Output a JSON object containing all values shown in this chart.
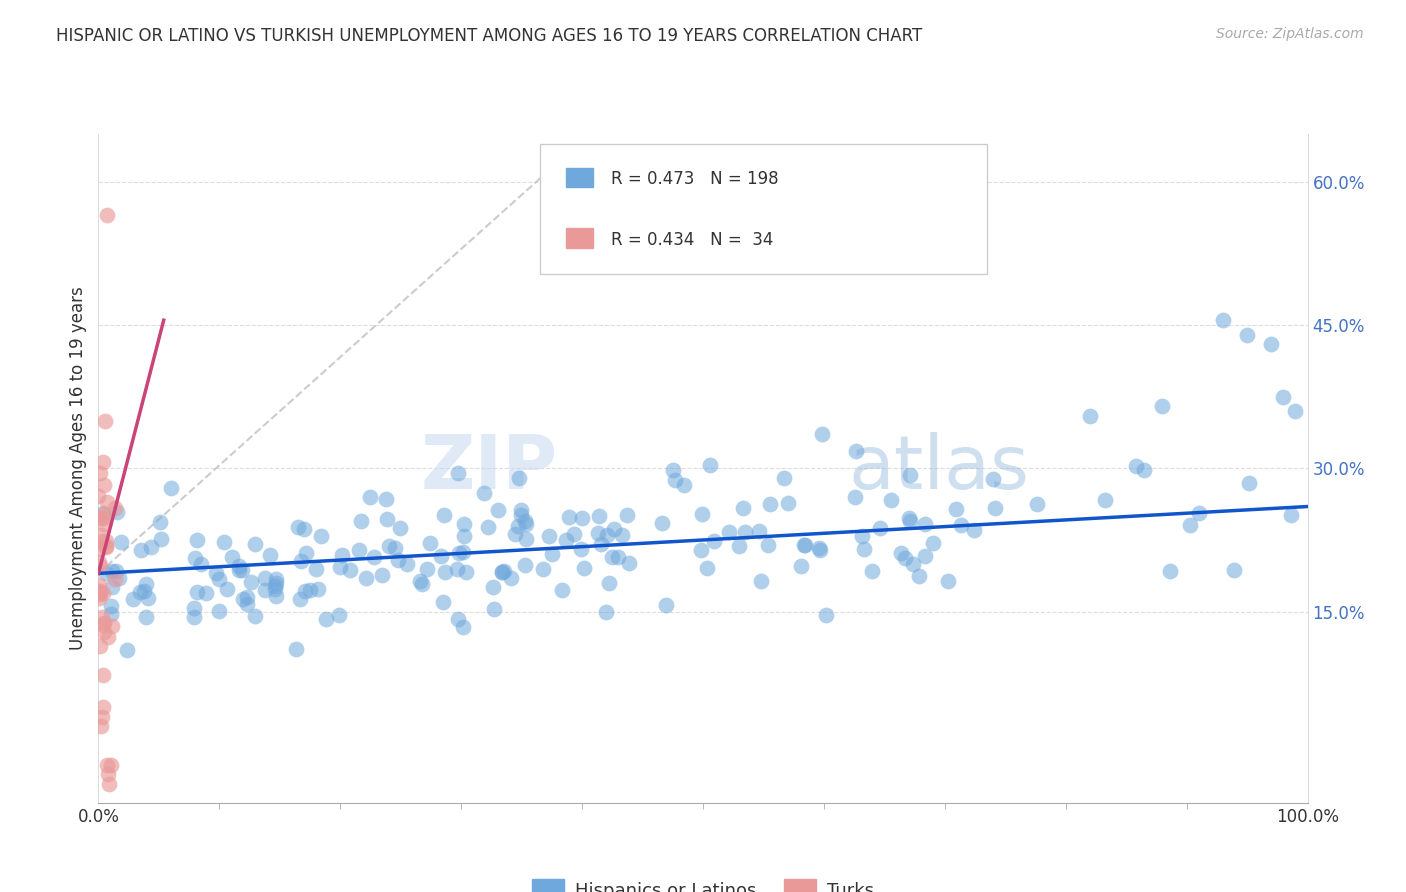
{
  "title": "HISPANIC OR LATINO VS TURKISH UNEMPLOYMENT AMONG AGES 16 TO 19 YEARS CORRELATION CHART",
  "source": "Source: ZipAtlas.com",
  "ylabel_label": "Unemployment Among Ages 16 to 19 years",
  "watermark_zip": "ZIP",
  "watermark_atlas": "atlas",
  "legend_label_blue": "Hispanics or Latinos",
  "legend_label_pink": "Turks",
  "blue_color": "#6fa8dc",
  "pink_color": "#ea9999",
  "blue_line_color": "#1155cc",
  "pink_line_color": "#cc4477",
  "ref_line_color": "#cccccc",
  "blue_R": 0.473,
  "blue_N": 198,
  "pink_R": 0.434,
  "pink_N": 34,
  "blue_trend_x": [
    0.0,
    1.0
  ],
  "blue_trend_y": [
    0.19,
    0.26
  ],
  "pink_trend_x": [
    0.0,
    0.054
  ],
  "pink_trend_y": [
    0.19,
    0.455
  ],
  "ref_line_x": [
    0.0,
    0.38
  ],
  "ref_line_y": [
    0.19,
    0.62
  ],
  "xlim": [
    0.0,
    1.0
  ],
  "ylim": [
    -0.05,
    0.65
  ],
  "ytick_vals": [
    0.15,
    0.3,
    0.45,
    0.6
  ],
  "ytick_labels": [
    "15.0%",
    "30.0%",
    "45.0%",
    "60.0%"
  ],
  "xtick_vals": [
    0.0,
    1.0
  ],
  "xtick_labels": [
    "0.0%",
    "100.0%"
  ]
}
